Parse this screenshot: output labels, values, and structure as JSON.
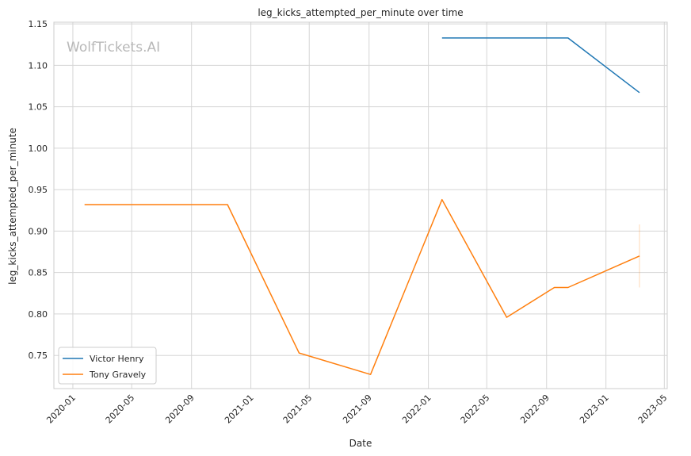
{
  "chart_data": {
    "type": "line",
    "title": "leg_kicks_attempted_per_minute over time",
    "xlabel": "Date",
    "ylabel": "leg_kicks_attempted_per_minute",
    "watermark": "WolfTickets.AI",
    "xlim": [
      "2019-11-23",
      "2023-05-07"
    ],
    "ylim": [
      0.71,
      1.152
    ],
    "x_ticks": [
      "2020-01-01",
      "2020-05-01",
      "2020-09-01",
      "2021-01-01",
      "2021-05-01",
      "2021-09-01",
      "2022-01-01",
      "2022-05-01",
      "2022-09-01",
      "2023-01-01",
      "2023-05-01"
    ],
    "x_tick_labels": [
      "2020-01",
      "2020-05",
      "2020-09",
      "2021-01",
      "2021-05",
      "2021-09",
      "2022-01",
      "2022-05",
      "2022-09",
      "2023-01",
      "2023-05"
    ],
    "y_ticks": [
      0.75,
      0.8,
      0.85,
      0.9,
      0.95,
      1.0,
      1.05,
      1.1,
      1.15
    ],
    "y_tick_labels": [
      "0.75",
      "0.80",
      "0.85",
      "0.90",
      "0.95",
      "1.00",
      "1.05",
      "1.10",
      "1.15"
    ],
    "grid": true,
    "legend_position": "lower-left",
    "series": [
      {
        "name": "Victor Henry",
        "color": "#1f77b4",
        "points": [
          {
            "x": "2022-01-29",
            "y": 1.133
          },
          {
            "x": "2022-10-15",
            "y": 1.133
          },
          {
            "x": "2023-03-11",
            "y": 1.067
          }
        ]
      },
      {
        "name": "Tony Gravely",
        "color": "#ff7f0e",
        "points": [
          {
            "x": "2020-01-25",
            "y": 0.932
          },
          {
            "x": "2020-11-14",
            "y": 0.932
          },
          {
            "x": "2021-04-10",
            "y": 0.753
          },
          {
            "x": "2021-09-04",
            "y": 0.727
          },
          {
            "x": "2022-01-29",
            "y": 0.938
          },
          {
            "x": "2022-06-11",
            "y": 0.796
          },
          {
            "x": "2022-09-17",
            "y": 0.832
          },
          {
            "x": "2022-10-15",
            "y": 0.832
          },
          {
            "x": "2023-03-11",
            "y": 0.87
          }
        ],
        "error_band": {
          "x": "2023-03-11",
          "low": 0.832,
          "high": 0.908
        }
      }
    ]
  }
}
